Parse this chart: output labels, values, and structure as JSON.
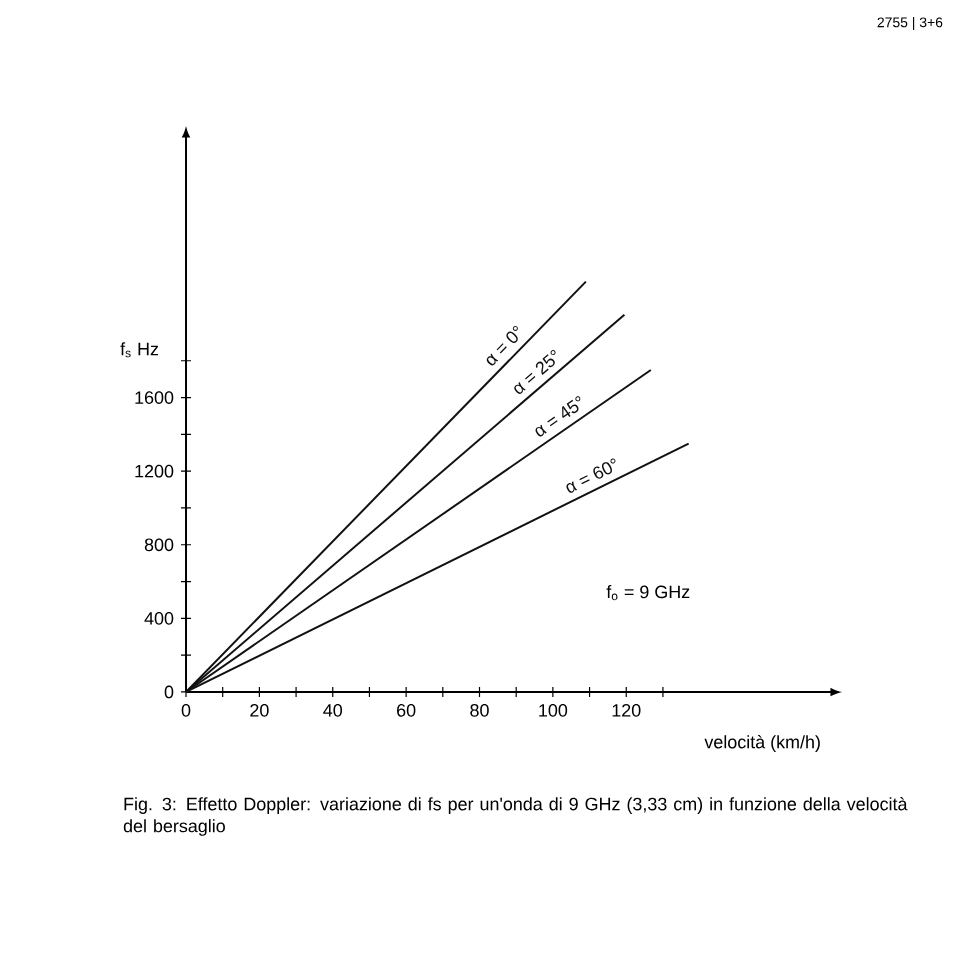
{
  "chart_data": {
    "type": "line",
    "ylabel": "f$_{s}$ Hz",
    "xlabel": "velocità (km/h)",
    "annotations": [
      "f$_{o}$ = 9 GHz",
      "Fig. 3: Effetto Doppler: variazione di fs per un'onda di 9 GHz (3,33 cm) in funzione della velocità del bersaglio",
      "2755 | 3+6"
    ],
    "series": [
      {
        "name": "α = 0°",
        "color": "#111111",
        "x": [
          0,
          109
        ],
        "values": [
          0,
          2230
        ]
      },
      {
        "name": "α = 25°",
        "color": "#111111",
        "x": [
          0,
          119.5
        ],
        "values": [
          0,
          2050
        ]
      },
      {
        "name": "α = 45°",
        "color": "#111111",
        "x": [
          0,
          126.7
        ],
        "values": [
          0,
          1750
        ]
      },
      {
        "name": "α = 60°",
        "color": "#111111",
        "x": [
          0,
          137
        ],
        "values": [
          0,
          1350
        ]
      }
    ],
    "xlim": [
      0,
      175
    ],
    "ylim": [
      0,
      3000
    ],
    "xticks": [
      0,
      {
        "value": 10,
        "label": null
      },
      20,
      {
        "value": 30,
        "label": null
      },
      40,
      {
        "value": 50,
        "label": null
      },
      60,
      {
        "value": 70,
        "label": null
      },
      80,
      {
        "value": 90,
        "label": null
      },
      100,
      {
        "value": 110,
        "label": null
      },
      120,
      {
        "value": 130,
        "label": null
      }
    ],
    "yticks": [
      0,
      {
        "value": 200,
        "label": null
      },
      400,
      {
        "value": 600,
        "label": null
      },
      800,
      {
        "value": 1000,
        "label": null
      },
      1200,
      {
        "value": 1400,
        "label": null
      },
      1600,
      {
        "value": 1800,
        "label": null
      }
    ],
    "grid": false,
    "legend": false,
    "marker": "none",
    "line_style": "solid"
  }
}
